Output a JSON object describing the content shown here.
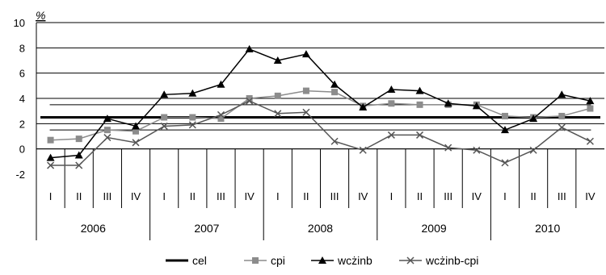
{
  "chart_data": {
    "type": "line",
    "unit_label": "%",
    "ylim": [
      -2,
      10
    ],
    "y_ticks": [
      -2,
      0,
      2,
      4,
      6,
      8,
      10
    ],
    "grid": true,
    "legend_position": "bottom",
    "categories": [
      "I",
      "II",
      "III",
      "IV",
      "I",
      "II",
      "III",
      "IV",
      "I",
      "II",
      "III",
      "IV",
      "I",
      "II",
      "III",
      "IV",
      "I",
      "II",
      "III",
      "IV"
    ],
    "year_groups": [
      {
        "label": "2006",
        "count": 4
      },
      {
        "label": "2007",
        "count": 4
      },
      {
        "label": "2008",
        "count": 4
      },
      {
        "label": "2009",
        "count": 4
      },
      {
        "label": "2010",
        "count": 4
      }
    ],
    "target_band": {
      "center": 2.5,
      "lower": 1.5,
      "upper": 3.5
    },
    "series": [
      {
        "name": "cel",
        "marker": "none",
        "values": [
          2.5,
          2.5,
          2.5,
          2.5,
          2.5,
          2.5,
          2.5,
          2.5,
          2.5,
          2.5,
          2.5,
          2.5,
          2.5,
          2.5,
          2.5,
          2.5,
          2.5,
          2.5,
          2.5,
          2.5
        ]
      },
      {
        "name": "cpi",
        "marker": "square",
        "values": [
          0.7,
          0.8,
          1.5,
          1.4,
          2.5,
          2.5,
          2.4,
          4.0,
          4.2,
          4.6,
          4.5,
          3.4,
          3.6,
          3.5,
          3.5,
          3.5,
          2.6,
          2.5,
          2.6,
          3.2
        ]
      },
      {
        "name": "wcżinb",
        "marker": "triangle",
        "values": [
          -0.7,
          -0.5,
          2.4,
          1.8,
          4.3,
          4.4,
          5.1,
          7.9,
          7.0,
          7.5,
          5.1,
          3.3,
          4.7,
          4.6,
          3.6,
          3.4,
          1.5,
          2.4,
          4.3,
          3.8
        ]
      },
      {
        "name": "wcżinb-cpi",
        "marker": "x",
        "values": [
          -1.3,
          -1.3,
          0.9,
          0.5,
          1.8,
          1.9,
          2.7,
          3.8,
          2.8,
          2.9,
          0.6,
          -0.1,
          1.1,
          1.1,
          0.1,
          -0.1,
          -1.1,
          -0.1,
          1.7,
          0.6
        ]
      }
    ],
    "colors": {
      "axis": "#000000",
      "grid": "#000000",
      "cpi": "#8c8c8c",
      "wczinb": "#000000",
      "wczinb_cpi": "#555555",
      "cel": "#000000"
    }
  }
}
